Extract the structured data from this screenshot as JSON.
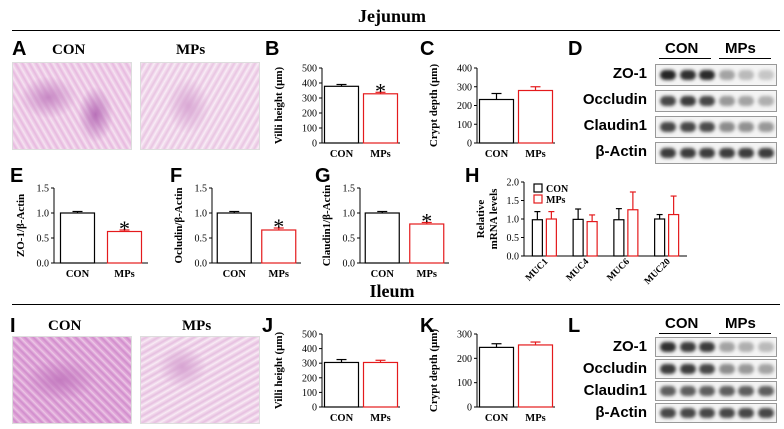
{
  "sections": {
    "top": "Jejunum",
    "bottom": "Ileum"
  },
  "panel_letters": [
    "A",
    "B",
    "C",
    "D",
    "E",
    "F",
    "G",
    "H",
    "I",
    "J",
    "K",
    "L"
  ],
  "histology": {
    "con_label": "CON",
    "mps_label": "MPs"
  },
  "colors": {
    "con": "#000000",
    "mps": "#e41a1c"
  },
  "blots": {
    "jejunum": {
      "group_labels": [
        "CON",
        "MPs"
      ],
      "rows": [
        "ZO-1",
        "Occludin",
        "Claudin1",
        "β-Actin"
      ],
      "intensity": [
        [
          0.95,
          0.9,
          0.92,
          0.4,
          0.3,
          0.25
        ],
        [
          0.8,
          0.85,
          0.8,
          0.45,
          0.4,
          0.35
        ],
        [
          0.8,
          0.8,
          0.78,
          0.5,
          0.48,
          0.45
        ],
        [
          0.85,
          0.85,
          0.85,
          0.85,
          0.85,
          0.85
        ]
      ]
    },
    "ileum": {
      "group_labels": [
        "CON",
        "MPs"
      ],
      "rows": [
        "ZO-1",
        "Occludin",
        "Claudin1",
        "β-Actin"
      ],
      "intensity": [
        [
          0.9,
          0.85,
          0.85,
          0.4,
          0.35,
          0.3
        ],
        [
          0.85,
          0.85,
          0.8,
          0.5,
          0.45,
          0.4
        ],
        [
          0.7,
          0.7,
          0.7,
          0.7,
          0.7,
          0.7
        ],
        [
          0.8,
          0.8,
          0.8,
          0.8,
          0.8,
          0.8
        ]
      ]
    }
  },
  "chart_data": [
    {
      "id": "B",
      "type": "bar",
      "categories": [
        "CON",
        "MPs"
      ],
      "values": [
        378,
        328
      ],
      "errors": [
        12,
        10
      ],
      "significance": [
        "",
        "*"
      ],
      "ylabel": "Villi height (μm)",
      "ylim": [
        0,
        500
      ],
      "yticks": [
        0,
        100,
        200,
        300,
        400,
        500
      ]
    },
    {
      "id": "C",
      "type": "bar",
      "categories": [
        "CON",
        "MPs"
      ],
      "values": [
        232,
        280
      ],
      "errors": [
        32,
        20
      ],
      "significance": [
        "",
        ""
      ],
      "ylabel": "Crypt depth (μm)",
      "ylim": [
        0,
        400
      ],
      "yticks": [
        0,
        100,
        200,
        300,
        400
      ]
    },
    {
      "id": "E",
      "type": "bar",
      "categories": [
        "CON",
        "MPs"
      ],
      "values": [
        1.0,
        0.63
      ],
      "errors": [
        0.03,
        0.03
      ],
      "significance": [
        "",
        "*"
      ],
      "ylabel": "ZO-1/β-Actin",
      "ylim": [
        0,
        1.5
      ],
      "yticks": [
        0.0,
        0.5,
        1.0,
        1.5
      ]
    },
    {
      "id": "F",
      "type": "bar",
      "categories": [
        "CON",
        "MPs"
      ],
      "values": [
        1.0,
        0.66
      ],
      "errors": [
        0.03,
        0.04
      ],
      "significance": [
        "",
        "*"
      ],
      "ylabel": "Ocludin/β-Actin",
      "ylim": [
        0,
        1.5
      ],
      "yticks": [
        0.0,
        0.5,
        1.0,
        1.5
      ]
    },
    {
      "id": "G",
      "type": "bar",
      "categories": [
        "CON",
        "MPs"
      ],
      "values": [
        1.0,
        0.78
      ],
      "errors": [
        0.03,
        0.03
      ],
      "significance": [
        "",
        "*"
      ],
      "ylabel": "Claudin1/β-Actin",
      "ylim": [
        0,
        1.5
      ],
      "yticks": [
        0.0,
        0.5,
        1.0,
        1.5
      ]
    },
    {
      "id": "H",
      "type": "bar",
      "categories": [
        "MUC1",
        "MUC4",
        "MUC6",
        "MUC20"
      ],
      "series": [
        {
          "name": "CON",
          "values": [
            0.98,
            0.99,
            0.98,
            1.0
          ],
          "errors": [
            0.22,
            0.28,
            0.3,
            0.12
          ]
        },
        {
          "name": "MPs",
          "values": [
            1.0,
            0.93,
            1.25,
            1.12
          ],
          "errors": [
            0.2,
            0.18,
            0.48,
            0.5
          ]
        }
      ],
      "ylabel": "Relative mRNA levels",
      "ylim": [
        0,
        2.0
      ],
      "yticks": [
        0.0,
        0.5,
        1.0,
        1.5,
        2.0
      ],
      "legend": "top-left"
    },
    {
      "id": "J",
      "type": "bar",
      "categories": [
        "CON",
        "MPs"
      ],
      "values": [
        305,
        305
      ],
      "errors": [
        20,
        15
      ],
      "significance": [
        "",
        ""
      ],
      "ylabel": "Villi height (μm)",
      "ylim": [
        0,
        500
      ],
      "yticks": [
        0,
        100,
        200,
        300,
        400,
        500
      ]
    },
    {
      "id": "K",
      "type": "bar",
      "categories": [
        "CON",
        "MPs"
      ],
      "values": [
        245,
        255
      ],
      "errors": [
        15,
        12
      ],
      "significance": [
        "",
        ""
      ],
      "ylabel": "Crypt depth (μm)",
      "ylim": [
        0,
        300
      ],
      "yticks": [
        0,
        100,
        200,
        300
      ]
    }
  ]
}
